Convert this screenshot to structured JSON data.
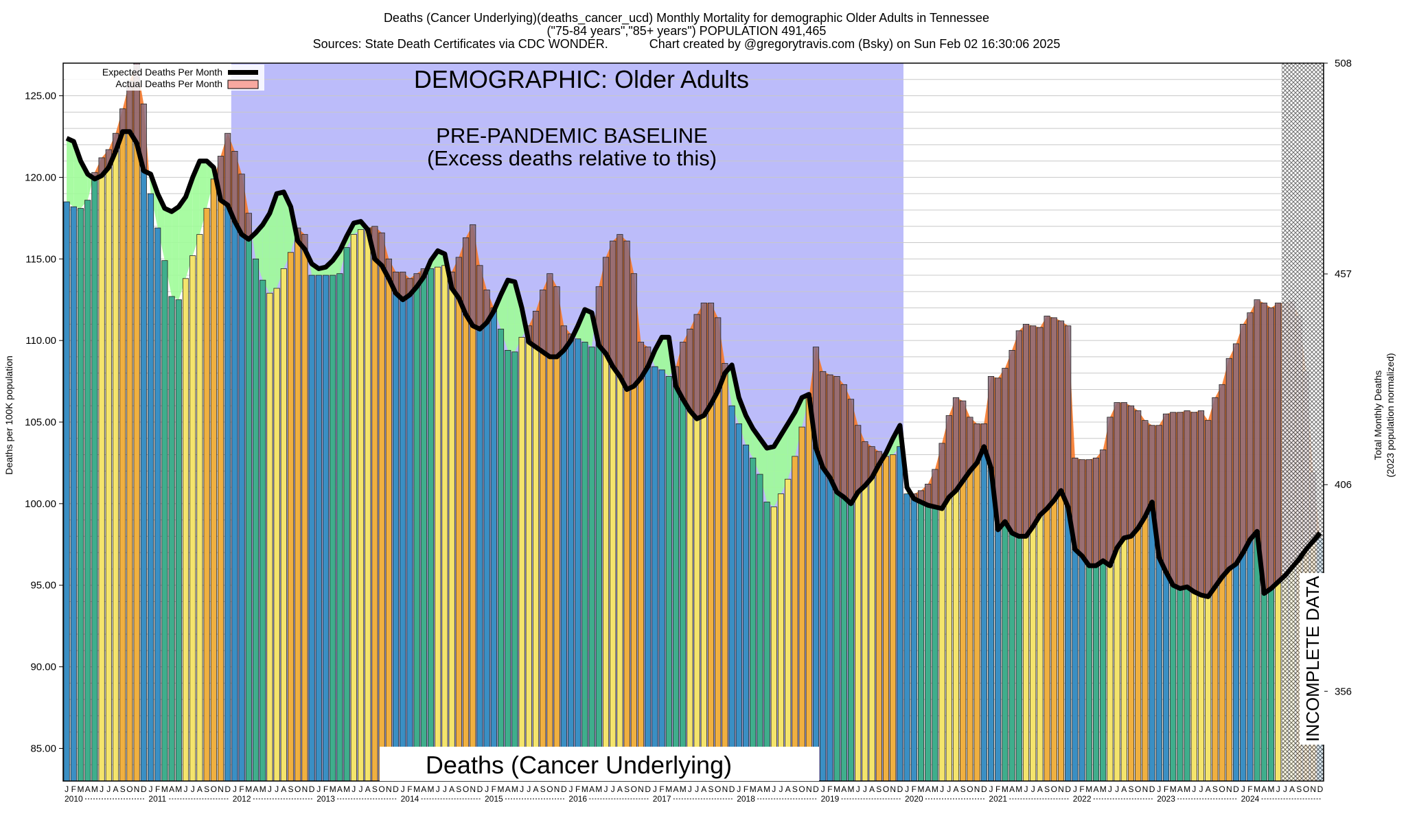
{
  "header": {
    "title_line1": "Deaths (Cancer Underlying)(deaths_cancer_ucd) Monthly Mortality for demographic Older Adults in Tennessee",
    "title_line2": "(\"75-84 years\",\"85+ years\") POPULATION 491,465",
    "title_line3": "Sources: State Death Certificates via CDC WONDER.            Chart created by @gregorytravis.com (Bsky) on Sun Feb 02 16:30:06 2025"
  },
  "legend": {
    "expected_label": "Expected Deaths Per Month",
    "actual_label": "Actual Deaths Per Month"
  },
  "annotations": {
    "demographic": "DEMOGRAPHIC: Older Adults",
    "baseline_line1": "PRE-PANDEMIC BASELINE",
    "baseline_line2": "(Excess deaths relative to this)",
    "cause_box": "Deaths (Cancer Underlying)",
    "incomplete": "INCOMPLETE DATA"
  },
  "colors": {
    "baseline_region": "#bcbcfa",
    "winter_bar": "#3a8fc4",
    "spring_bar": "#3fae8c",
    "summer_bar": "#f4e46c",
    "autumn_bar": "#f0b040",
    "excess_fill": "#f5782a",
    "excess_over_expected": "#8a6a7a",
    "deficit_fill": "#9efc98",
    "expected_line": "#000000",
    "incomplete_hatch": "#555555"
  },
  "chart_data": {
    "type": "bar",
    "title": "Deaths (Cancer Underlying)(deaths_cancer_ucd) Monthly Mortality for demographic Older Adults in Tennessee",
    "ylabel": "Deaths per 100K population",
    "y2label_line1": "Total Monthly Deaths",
    "y2label_line2": "(2023 population normalized)",
    "ylim": [
      83.0,
      127.0
    ],
    "y_ticks": [
      "85.00",
      "90.00",
      "95.00",
      "100.00",
      "105.00",
      "110.00",
      "115.00",
      "120.00",
      "125.00"
    ],
    "y_tick_values": [
      85,
      90,
      95,
      100,
      105,
      110,
      115,
      120,
      125
    ],
    "y2_ticks": [
      "356",
      "406",
      "457",
      "508"
    ],
    "y2_tick_values": [
      356,
      406,
      457,
      508
    ],
    "month_letters": [
      "J",
      "F",
      "M",
      "A",
      "M",
      "J",
      "J",
      "A",
      "S",
      "O",
      "N",
      "D"
    ],
    "years": [
      "2010",
      "2011",
      "2012",
      "2013",
      "2014",
      "2015",
      "2016",
      "2017",
      "2018",
      "2019",
      "2020",
      "2021",
      "2022",
      "2023",
      "2024"
    ],
    "baseline_period": [
      "2012-01",
      "2019-12"
    ],
    "incomplete_from": "2024-07",
    "grid": true,
    "legend_position": "top-left",
    "series": [
      {
        "name": "Actual Deaths Per Month",
        "values": [
          118.5,
          118.2,
          118.1,
          118.6,
          120.3,
          121.2,
          121.7,
          122.7,
          124.2,
          125.9,
          127.0,
          124.5,
          119.0,
          116.9,
          114.9,
          112.7,
          112.5,
          113.8,
          115.2,
          116.5,
          118.1,
          119.9,
          121.3,
          122.7,
          121.6,
          120.2,
          117.8,
          115.0,
          113.7,
          112.9,
          113.2,
          114.4,
          115.4,
          116.9,
          116.5,
          114.0,
          114.0,
          114.0,
          114.0,
          114.1,
          115.7,
          116.5,
          116.8,
          116.9,
          117.0,
          116.6,
          115.0,
          114.2,
          114.2,
          113.8,
          114.1,
          114.4,
          114.4,
          114.5,
          114.6,
          114.2,
          115.1,
          116.3,
          117.1,
          114.6,
          113.1,
          112.0,
          110.7,
          109.4,
          109.3,
          110.2,
          110.9,
          111.8,
          113.1,
          114.1,
          113.3,
          110.9,
          110.4,
          110.1,
          109.9,
          109.6,
          113.3,
          115.1,
          116.1,
          116.5,
          116.1,
          114.1,
          109.9,
          109.6,
          108.4,
          108.2,
          107.8,
          108.4,
          109.9,
          110.7,
          111.6,
          112.3,
          112.3,
          111.4,
          108.6,
          106.0,
          104.9,
          103.6,
          102.8,
          101.8,
          100.1,
          99.8,
          100.6,
          101.5,
          102.9,
          104.7,
          106.5,
          109.6,
          108.1,
          107.9,
          107.8,
          107.3,
          106.4,
          104.8,
          103.8,
          103.5,
          103.2,
          102.9,
          103.0,
          103.5,
          100.6,
          100.6,
          100.8,
          101.2,
          102.1,
          103.7,
          105.4,
          106.5,
          106.3,
          105.3,
          104.9,
          104.9,
          107.8,
          107.7,
          108.3,
          109.4,
          110.6,
          111.0,
          110.9,
          110.8,
          111.5,
          111.4,
          111.2,
          110.9,
          102.8,
          102.7,
          102.7,
          102.8,
          103.3,
          105.3,
          106.2,
          106.2,
          106.0,
          105.7,
          105.1,
          104.8,
          104.8,
          105.5,
          105.6,
          105.6,
          105.7,
          105.6,
          105.7,
          105.1,
          106.5,
          107.3,
          108.9,
          109.8,
          111.0,
          111.7,
          112.5,
          112.3,
          112.0,
          112.3,
          112.3,
          112.4,
          111.5,
          108.1,
          101.9,
          97.9
        ]
      },
      {
        "name": "Expected Deaths Per Month",
        "values": [
          122.4,
          122.2,
          121.0,
          120.2,
          119.9,
          120.1,
          120.6,
          121.6,
          122.8,
          122.8,
          122.1,
          120.4,
          120.2,
          119.0,
          118.1,
          117.9,
          118.2,
          118.8,
          120.0,
          121.0,
          121.0,
          120.6,
          118.6,
          118.3,
          117.3,
          116.5,
          116.2,
          116.6,
          117.1,
          117.8,
          119.0,
          119.1,
          118.2,
          116.1,
          115.6,
          114.7,
          114.4,
          114.5,
          114.9,
          115.5,
          116.4,
          117.2,
          117.3,
          116.8,
          115.0,
          114.6,
          113.8,
          112.9,
          112.5,
          112.8,
          113.3,
          113.9,
          114.9,
          115.5,
          115.3,
          113.2,
          112.6,
          111.6,
          110.9,
          110.7,
          111.1,
          111.8,
          112.8,
          113.7,
          113.6,
          112.0,
          109.9,
          109.6,
          109.3,
          109.0,
          109.0,
          109.4,
          110.0,
          110.9,
          111.9,
          111.7,
          109.7,
          109.2,
          108.4,
          107.8,
          107.0,
          107.2,
          107.7,
          108.4,
          109.4,
          110.2,
          110.2,
          107.2,
          106.4,
          105.7,
          105.2,
          105.4,
          106.1,
          106.9,
          108.0,
          108.5,
          106.5,
          105.4,
          104.6,
          104.0,
          103.4,
          103.5,
          104.2,
          104.9,
          105.6,
          106.5,
          106.7,
          103.4,
          102.2,
          101.6,
          100.7,
          100.4,
          100.0,
          100.7,
          101.1,
          101.6,
          102.4,
          103.1,
          104.0,
          104.8,
          101.0,
          100.3,
          100.1,
          99.9,
          99.8,
          99.7,
          100.4,
          100.8,
          101.4,
          102.0,
          102.5,
          103.5,
          102.2,
          98.4,
          98.9,
          98.2,
          98.0,
          98.0,
          98.6,
          99.3,
          99.7,
          100.2,
          100.8,
          99.8,
          97.2,
          96.8,
          96.2,
          96.2,
          96.5,
          96.2,
          97.3,
          97.9,
          98.0,
          98.5,
          99.2,
          100.1,
          96.7,
          95.8,
          95.0,
          94.8,
          94.9,
          94.6,
          94.4,
          94.3,
          94.9,
          95.5,
          96.0,
          96.3,
          97.0,
          97.8,
          98.3,
          94.5,
          94.8,
          95.2,
          95.6,
          96.1,
          96.6,
          97.2,
          97.7,
          98.2
        ]
      }
    ]
  }
}
